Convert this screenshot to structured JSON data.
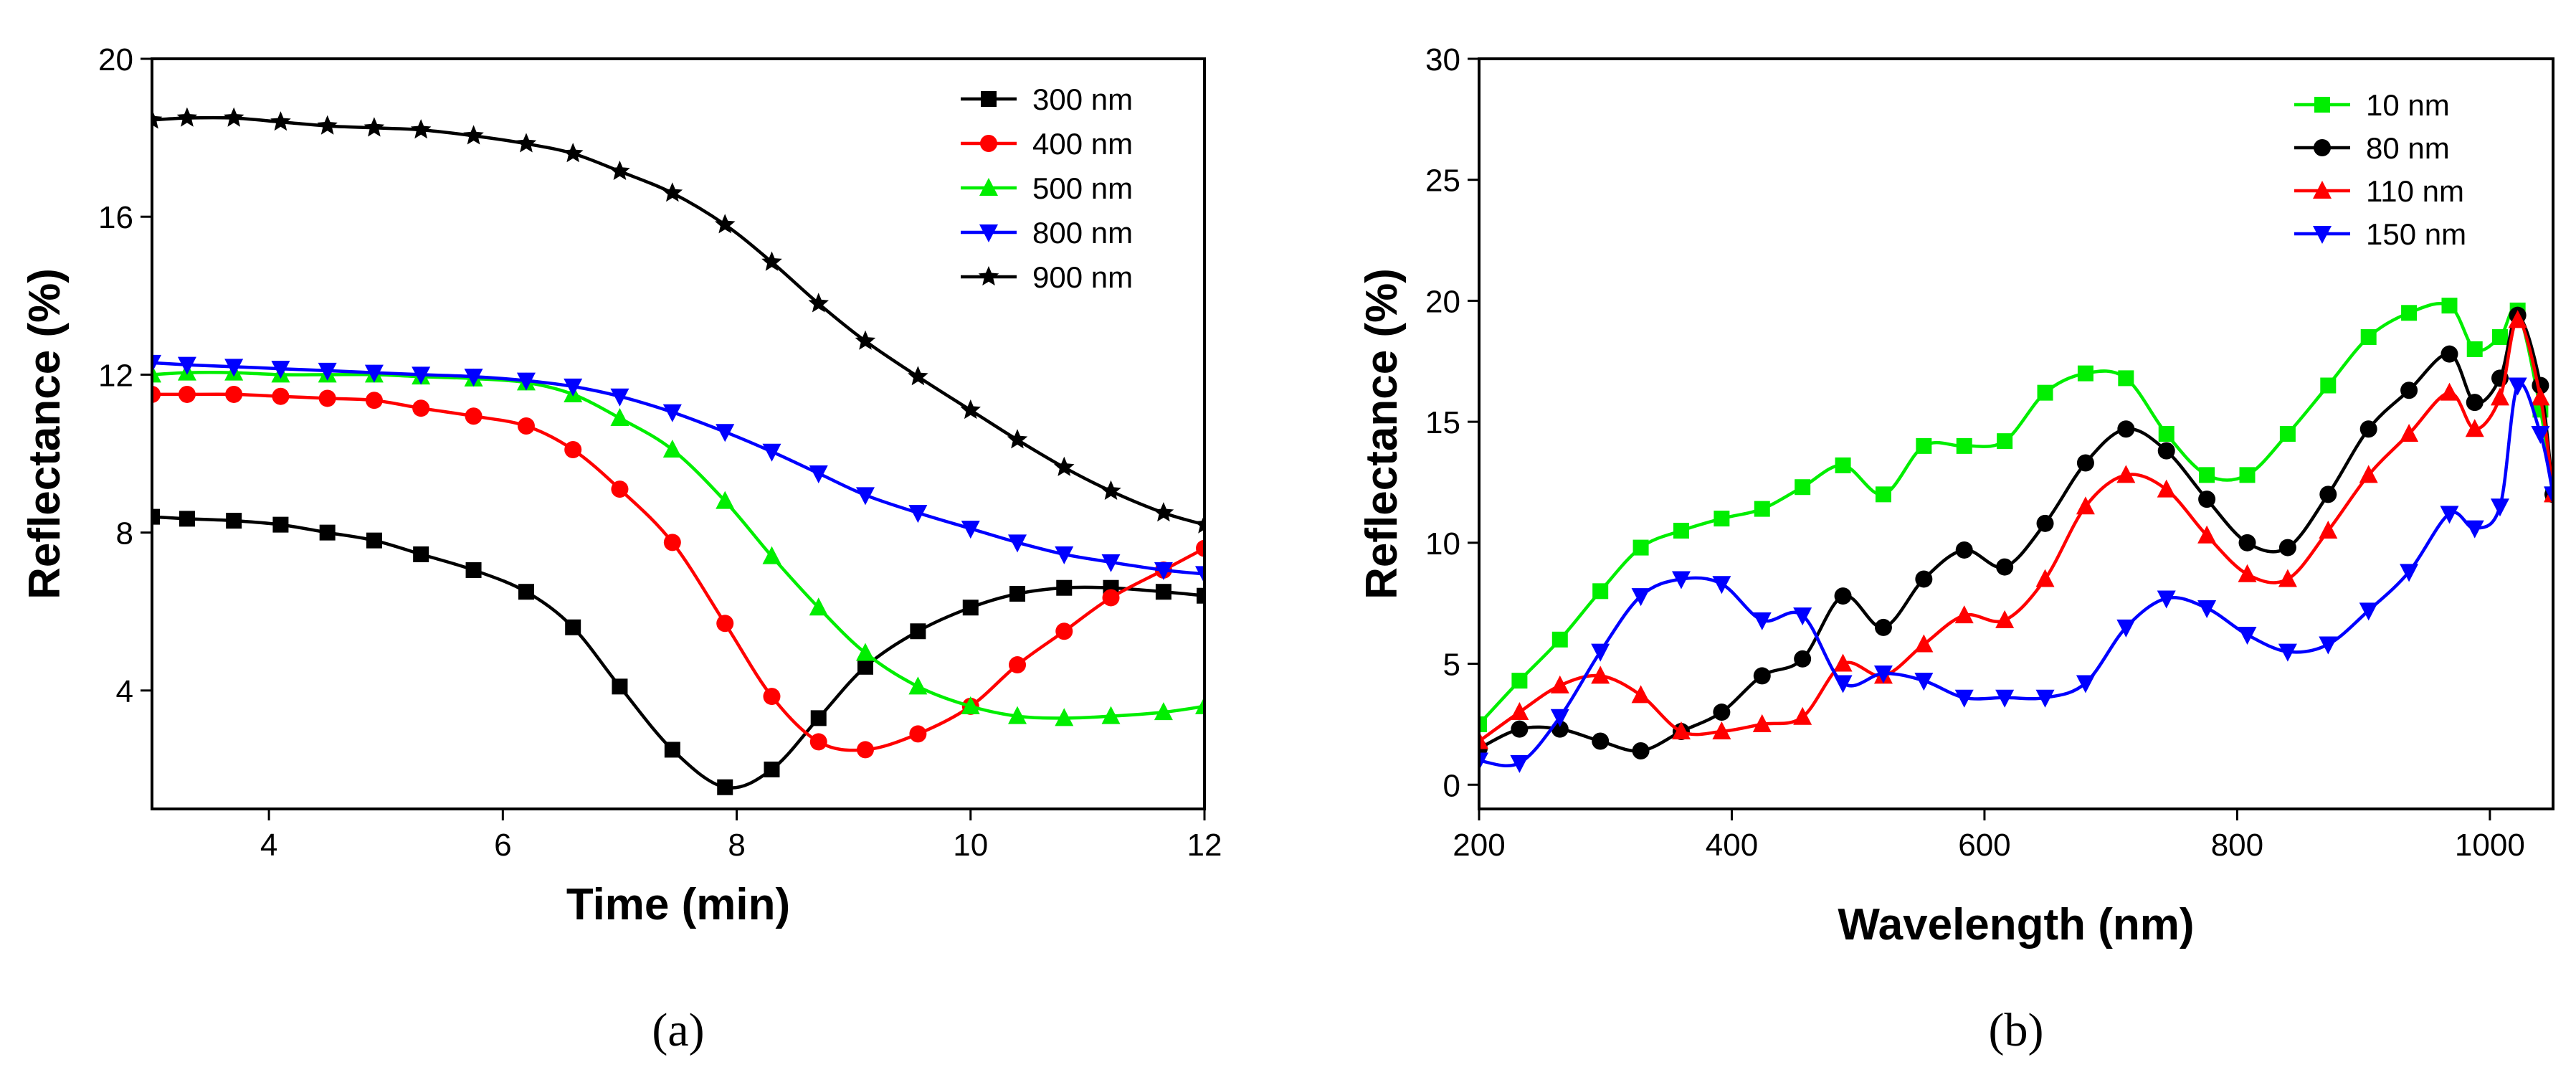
{
  "chart_data": [
    {
      "panel": "a",
      "type": "line",
      "panel_label": "(a)",
      "xlabel": "Time (min)",
      "ylabel": "Reflectance (%)",
      "xlim": [
        3,
        12
      ],
      "ylim": [
        1,
        20
      ],
      "xticks": [
        4,
        6,
        8,
        10,
        12
      ],
      "yticks": [
        4,
        8,
        12,
        16,
        20
      ],
      "legend_position": "top-right",
      "series": [
        {
          "name": "300 nm",
          "color": "#000000",
          "marker": "square",
          "x": [
            3.0,
            3.3,
            3.7,
            4.1,
            4.5,
            4.9,
            5.3,
            5.75,
            6.2,
            6.6,
            7.0,
            7.45,
            7.9,
            8.3,
            8.7,
            9.1,
            9.55,
            10.0,
            10.4,
            10.8,
            11.2,
            11.65,
            12.0
          ],
          "y": [
            8.4,
            8.35,
            8.3,
            8.2,
            8.0,
            7.8,
            7.45,
            7.05,
            6.5,
            5.6,
            4.1,
            2.5,
            1.55,
            2.0,
            3.3,
            4.6,
            5.5,
            6.1,
            6.45,
            6.6,
            6.6,
            6.5,
            6.4
          ]
        },
        {
          "name": "400 nm",
          "color": "#ff0000",
          "marker": "circle",
          "x": [
            3.0,
            3.3,
            3.7,
            4.1,
            4.5,
            4.9,
            5.3,
            5.75,
            6.2,
            6.6,
            7.0,
            7.45,
            7.9,
            8.3,
            8.7,
            9.1,
            9.55,
            10.0,
            10.4,
            10.8,
            11.2,
            11.65,
            12.0
          ],
          "y": [
            11.5,
            11.5,
            11.5,
            11.45,
            11.4,
            11.35,
            11.15,
            10.95,
            10.7,
            10.1,
            9.1,
            7.75,
            5.7,
            3.85,
            2.7,
            2.5,
            2.9,
            3.6,
            4.65,
            5.5,
            6.35,
            7.05,
            7.6
          ]
        },
        {
          "name": "500 nm",
          "color": "#00ee00",
          "marker": "triangle-up",
          "x": [
            3.0,
            3.3,
            3.7,
            4.1,
            4.5,
            4.9,
            5.3,
            5.75,
            6.2,
            6.6,
            7.0,
            7.45,
            7.9,
            8.3,
            8.7,
            9.1,
            9.55,
            10.0,
            10.4,
            10.8,
            11.2,
            11.65,
            12.0
          ],
          "y": [
            12.0,
            12.05,
            12.05,
            12.0,
            12.0,
            12.0,
            11.95,
            11.9,
            11.8,
            11.5,
            10.9,
            10.1,
            8.8,
            7.4,
            6.1,
            4.95,
            4.1,
            3.6,
            3.35,
            3.3,
            3.35,
            3.45,
            3.6
          ]
        },
        {
          "name": "800 nm",
          "color": "#0000ff",
          "marker": "triangle-down",
          "x": [
            3.0,
            3.3,
            3.7,
            4.1,
            4.5,
            4.9,
            5.3,
            5.75,
            6.2,
            6.6,
            7.0,
            7.45,
            7.9,
            8.3,
            8.7,
            9.1,
            9.55,
            10.0,
            10.4,
            10.8,
            11.2,
            11.65,
            12.0
          ],
          "y": [
            12.3,
            12.25,
            12.2,
            12.15,
            12.1,
            12.05,
            12.0,
            11.95,
            11.85,
            11.7,
            11.45,
            11.05,
            10.55,
            10.05,
            9.5,
            8.95,
            8.5,
            8.1,
            7.75,
            7.45,
            7.25,
            7.05,
            6.95
          ]
        },
        {
          "name": "900 nm",
          "color": "#000000",
          "marker": "star",
          "x": [
            3.0,
            3.3,
            3.7,
            4.1,
            4.5,
            4.9,
            5.3,
            5.75,
            6.2,
            6.6,
            7.0,
            7.45,
            7.9,
            8.3,
            8.7,
            9.1,
            9.55,
            10.0,
            10.4,
            10.8,
            11.2,
            11.65,
            12.0
          ],
          "y": [
            18.45,
            18.5,
            18.5,
            18.4,
            18.3,
            18.25,
            18.2,
            18.05,
            17.85,
            17.6,
            17.15,
            16.6,
            15.8,
            14.85,
            13.8,
            12.85,
            11.95,
            11.1,
            10.35,
            9.65,
            9.05,
            8.5,
            8.2
          ]
        }
      ]
    },
    {
      "panel": "b",
      "type": "line",
      "panel_label": "(b)",
      "xlabel": "Wavelength (nm)",
      "ylabel": "Reflectance (%)",
      "xlim": [
        200,
        1050
      ],
      "ylim": [
        -1,
        30
      ],
      "xticks": [
        200,
        400,
        600,
        800,
        1000
      ],
      "yticks": [
        0,
        5,
        10,
        15,
        20,
        25,
        30
      ],
      "legend_position": "top-right",
      "series": [
        {
          "name": "10 nm",
          "color": "#00ee00",
          "marker": "square",
          "x": [
            200,
            232,
            264,
            296,
            328,
            360,
            392,
            424,
            456,
            488,
            520,
            552,
            584,
            616,
            648,
            680,
            712,
            744,
            776,
            808,
            840,
            872,
            904,
            936,
            968,
            988,
            1008,
            1022,
            1040,
            1050
          ],
          "y": [
            2.5,
            4.3,
            6.0,
            8.0,
            9.8,
            10.5,
            11.0,
            11.4,
            12.3,
            13.2,
            12.0,
            14.0,
            14.0,
            14.2,
            16.2,
            17.0,
            16.8,
            14.5,
            12.8,
            12.8,
            14.5,
            16.5,
            18.5,
            19.5,
            19.8,
            18.0,
            18.5,
            19.6,
            15.5,
            12.0
          ]
        },
        {
          "name": "80 nm",
          "color": "#000000",
          "marker": "circle",
          "x": [
            200,
            232,
            264,
            296,
            328,
            360,
            392,
            424,
            456,
            488,
            520,
            552,
            584,
            616,
            648,
            680,
            712,
            744,
            776,
            808,
            840,
            872,
            904,
            936,
            968,
            988,
            1008,
            1022,
            1040,
            1050
          ],
          "y": [
            1.5,
            2.3,
            2.3,
            1.8,
            1.4,
            2.2,
            3.0,
            4.5,
            5.2,
            7.8,
            6.5,
            8.5,
            9.7,
            9.0,
            10.8,
            13.3,
            14.7,
            13.8,
            11.8,
            10.0,
            9.8,
            12.0,
            14.7,
            16.3,
            17.8,
            15.8,
            16.8,
            19.4,
            16.5,
            12.0
          ]
        },
        {
          "name": "110 nm",
          "color": "#ff0000",
          "marker": "triangle-up",
          "x": [
            200,
            232,
            264,
            296,
            328,
            360,
            392,
            424,
            456,
            488,
            520,
            552,
            584,
            616,
            648,
            680,
            712,
            744,
            776,
            808,
            840,
            872,
            904,
            936,
            968,
            988,
            1008,
            1022,
            1040,
            1050
          ],
          "y": [
            1.8,
            3.0,
            4.1,
            4.5,
            3.7,
            2.2,
            2.2,
            2.5,
            2.8,
            5.0,
            4.5,
            5.8,
            7.0,
            6.8,
            8.5,
            11.5,
            12.8,
            12.2,
            10.3,
            8.7,
            8.5,
            10.5,
            12.8,
            14.5,
            16.2,
            14.7,
            16.0,
            19.2,
            16.0,
            12.0
          ]
        },
        {
          "name": "150 nm",
          "color": "#0000ff",
          "marker": "triangle-down",
          "x": [
            200,
            232,
            264,
            296,
            328,
            360,
            392,
            424,
            456,
            488,
            520,
            552,
            584,
            616,
            648,
            680,
            712,
            744,
            776,
            808,
            840,
            872,
            904,
            936,
            968,
            988,
            1008,
            1022,
            1040,
            1050
          ],
          "y": [
            1.0,
            0.9,
            2.8,
            5.5,
            7.8,
            8.5,
            8.3,
            6.8,
            7.0,
            4.2,
            4.6,
            4.3,
            3.6,
            3.6,
            3.6,
            4.2,
            6.5,
            7.7,
            7.3,
            6.2,
            5.5,
            5.8,
            7.2,
            8.8,
            11.2,
            10.6,
            11.5,
            16.5,
            14.5,
            12.0
          ]
        }
      ]
    }
  ]
}
